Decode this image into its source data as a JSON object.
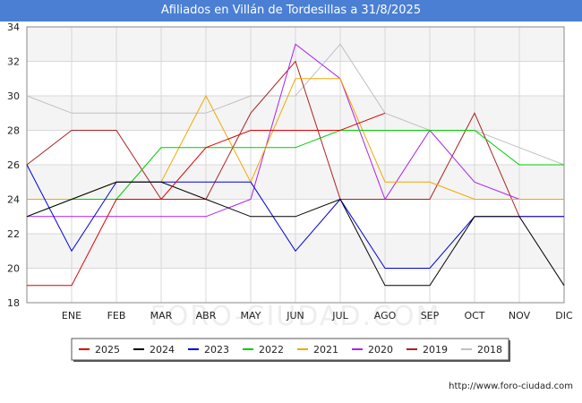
{
  "header": {
    "title": "Afiliados en Villán de Tordesillas a 31/8/2025"
  },
  "footer": {
    "url": "http://www.foro-ciudad.com"
  },
  "watermark": "FORO-CIUDAD.COM",
  "chart_data": {
    "type": "line",
    "title": "Afiliados en Villán de Tordesillas a 31/8/2025",
    "xlabel": "",
    "ylabel": "",
    "categories": [
      "",
      "ENE",
      "FEB",
      "MAR",
      "ABR",
      "MAY",
      "JUN",
      "JUL",
      "AGO",
      "SEP",
      "OCT",
      "NOV",
      "DIC"
    ],
    "ylim": [
      18,
      34
    ],
    "yticks": [
      18,
      20,
      22,
      24,
      26,
      28,
      30,
      32,
      34
    ],
    "grid": true,
    "legend_position": "bottom",
    "series": [
      {
        "name": "2025",
        "color": "#dd0000",
        "values": [
          19,
          19,
          24,
          24,
          27,
          28,
          28,
          28,
          29,
          null,
          null,
          null,
          null
        ]
      },
      {
        "name": "2024",
        "color": "#000000",
        "values": [
          23,
          24,
          25,
          25,
          24,
          23,
          23,
          24,
          19,
          19,
          23,
          23,
          19
        ]
      },
      {
        "name": "2023",
        "color": "#0000dd",
        "values": [
          26,
          21,
          25,
          25,
          25,
          25,
          21,
          24,
          20,
          20,
          23,
          23,
          23
        ]
      },
      {
        "name": "2022",
        "color": "#00cc00",
        "values": [
          23,
          24,
          24,
          27,
          27,
          27,
          27,
          28,
          28,
          28,
          28,
          26,
          26
        ]
      },
      {
        "name": "2021",
        "color": "#f0a800",
        "values": [
          24,
          24,
          25,
          25,
          30,
          25,
          31,
          31,
          25,
          25,
          24,
          24,
          24
        ]
      },
      {
        "name": "2020",
        "color": "#aa22ee",
        "values": [
          23,
          23,
          23,
          23,
          23,
          24,
          33,
          31,
          24,
          28,
          25,
          24,
          24
        ]
      },
      {
        "name": "2019",
        "color": "#aa2222",
        "values": [
          26,
          28,
          28,
          24,
          24,
          29,
          32,
          24,
          24,
          24,
          29,
          23,
          23
        ]
      },
      {
        "name": "2018",
        "color": "#c0c0c0",
        "values": [
          30,
          29,
          29,
          29,
          29,
          30,
          30,
          33,
          29,
          28,
          28,
          27,
          26
        ]
      }
    ]
  }
}
